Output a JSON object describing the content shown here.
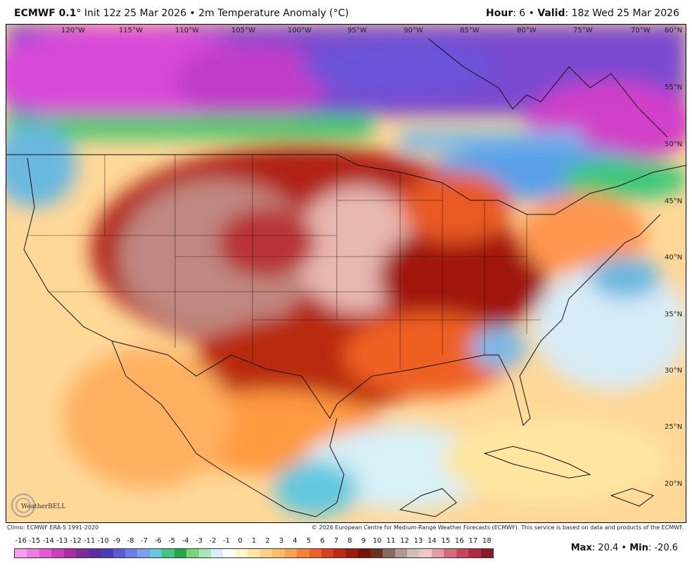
{
  "header": {
    "model": "ECMWF 0.1",
    "init_text": "° Init 12z 25 Mar 2026 • 2m Temperature Anomaly (°C)",
    "hour_label": "Hour",
    "hour_value": ": 6 • ",
    "valid_label": "Valid",
    "valid_value": ": 18z Wed 25 Mar 2026"
  },
  "map": {
    "lon_labels": [
      "120°W",
      "115°W",
      "110°W",
      "105°W",
      "100°W",
      "95°W",
      "90°W",
      "85°W",
      "80°W",
      "75°W",
      "70°W",
      "60°N"
    ],
    "lat_labels": [
      "55°N",
      "50°N",
      "45°N",
      "40°N",
      "35°N",
      "30°N",
      "25°N",
      "20°N"
    ],
    "logo_text": "WeatherBELL"
  },
  "footer": {
    "climo": "Climo: ECMWF ERA-5 1991-2020",
    "copyright": "© 2026 European Centre for Medium-Range Weather Forecasts (ECMWF). This service is based on data and products of the ECMWF."
  },
  "colorbar": {
    "ticks": [
      "-16",
      "-15",
      "-14",
      "-13",
      "-12",
      "-11",
      "-10",
      "-9",
      "-8",
      "-7",
      "-6",
      "-5",
      "-4",
      "-3",
      "-2",
      "-1",
      "0",
      "1",
      "2",
      "3",
      "4",
      "5",
      "6",
      "7",
      "8",
      "9",
      "10",
      "11",
      "12",
      "13",
      "14",
      "15",
      "16",
      "17",
      "18"
    ],
    "colors": [
      "#ff9cf2",
      "#f27ae4",
      "#e45ad4",
      "#cc3ebe",
      "#a82ca6",
      "#7e2a9a",
      "#5a2ea0",
      "#4a3cb8",
      "#5a5ad8",
      "#6e7ee6",
      "#7aa2ec",
      "#62c8e0",
      "#3ec87a",
      "#22a84a",
      "#7ad27a",
      "#a8e6b8",
      "#d8f0f8",
      "#ffffff",
      "#fff6c8",
      "#ffe6a0",
      "#ffd080",
      "#ffba6a",
      "#ffa050",
      "#f88038",
      "#ee6028",
      "#d8401c",
      "#c02814",
      "#9c1a10",
      "#7a1008",
      "#6a3020",
      "#8c6a5e",
      "#b09890",
      "#d0c0ba",
      "#f0c8c8",
      "#e89aa0",
      "#d86a78",
      "#c8485a",
      "#b02a40",
      "#8a1a28"
    ]
  },
  "stats": {
    "max_label": "Max",
    "max_value": ": 20.4 • ",
    "min_label": "Min",
    "min_value": ": -20.6"
  }
}
